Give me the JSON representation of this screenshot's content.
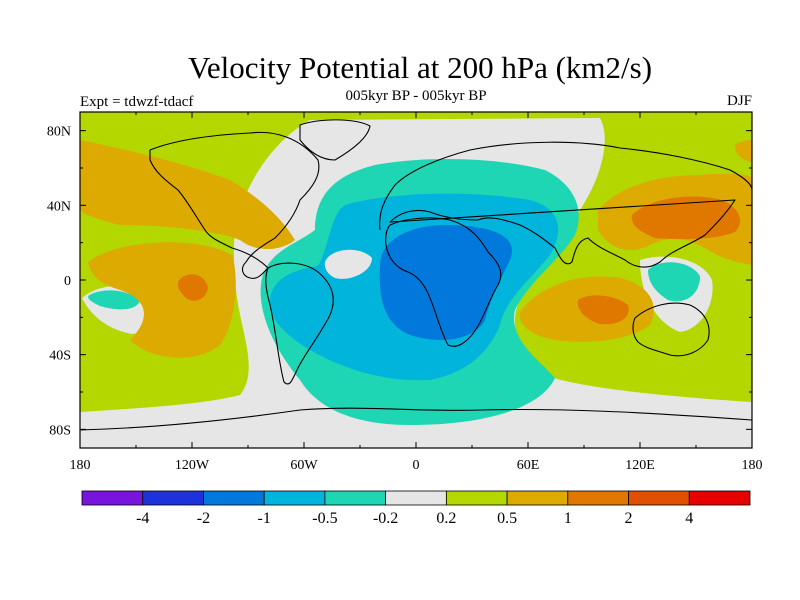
{
  "figure": {
    "title": "Velocity Potential at 200 hPa (km2/s)",
    "subtitle": "005kyr BP - 005kyr BP",
    "experiment": "Expt = tdwzf-tdacf",
    "season": "DJF"
  },
  "map": {
    "projection": "cylindrical equidistant",
    "lon_range": [
      -180,
      180
    ],
    "lat_range": [
      -90,
      90
    ],
    "x_ticks": [
      {
        "lon": -180,
        "label": "180"
      },
      {
        "lon": -120,
        "label": "120W"
      },
      {
        "lon": -60,
        "label": "60W"
      },
      {
        "lon": 0,
        "label": "0"
      },
      {
        "lon": 60,
        "label": "60E"
      },
      {
        "lon": 120,
        "label": "120E"
      },
      {
        "lon": 180,
        "label": "180"
      }
    ],
    "y_ticks": [
      {
        "lat": 80,
        "label": "80N"
      },
      {
        "lat": 40,
        "label": "40N"
      },
      {
        "lat": 0,
        "label": "0"
      },
      {
        "lat": -40,
        "label": "40S"
      },
      {
        "lat": -80,
        "label": "80S"
      }
    ],
    "field_colors": {
      "weak_neutral": "#e6e6e6",
      "pos_0_2": "#b4d700",
      "pos_0_5": "#dcaa00",
      "pos_1": "#e07800",
      "neg_0_2": "#1fd6b4",
      "neg_0_5": "#00b4dc",
      "neg_1": "#0078dc"
    }
  },
  "colorbar": {
    "colors": [
      "#7814dc",
      "#1e32dc",
      "#0078dc",
      "#00b4dc",
      "#1fd6b4",
      "#e6e6e6",
      "#b4d700",
      "#dcaa00",
      "#e07800",
      "#e05000",
      "#e60000"
    ],
    "labels": [
      "-4",
      "-2",
      "-1",
      "-0.5",
      "-0.2",
      "0.2",
      "0.5",
      "1",
      "2",
      "4"
    ]
  }
}
